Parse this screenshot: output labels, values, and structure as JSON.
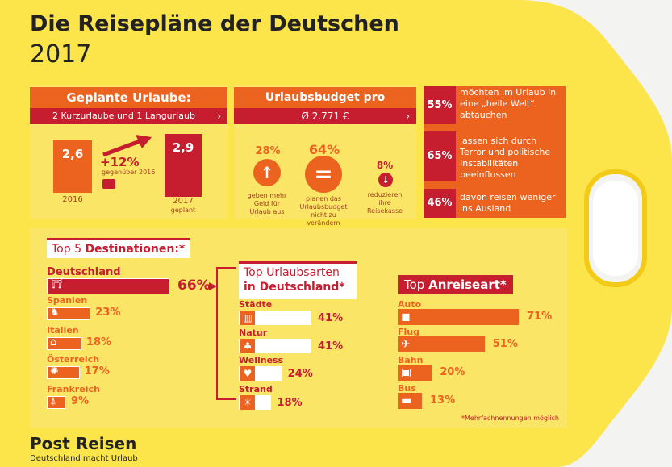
{
  "header": {
    "title": "Die Reisepläne der Deutschen",
    "year": "2017"
  },
  "urlaube": {
    "title": "Geplante Urlaube:",
    "subtitle": "2 Kurzurlaube und 1 Langurlaub",
    "v2016": "2,6",
    "l2016": "2016",
    "v2017": "2,9",
    "l2017": "2017",
    "l2017b": "geplant",
    "growth": "+12%",
    "growth_sub": "gegenüber 2016"
  },
  "budget": {
    "title": "Urlaubsbudget pro Haushalt:",
    "value": "Ø 2.771 €",
    "items": [
      {
        "pct": "28%",
        "text": "geben mehr Geld für Urlaub aus"
      },
      {
        "pct": "64%",
        "text": "planen das Urlaubsbudget nicht zu verändern"
      },
      {
        "pct": "8%",
        "text": "reduzieren ihre Reisekasse"
      }
    ]
  },
  "heile": [
    {
      "pct": "55%",
      "text": "möchten im Urlaub in eine „heile Welt“ abtauchen"
    },
    {
      "pct": "65%",
      "text": "lassen sich durch Terror und politische Instabilitäten beeinflussen"
    },
    {
      "pct": "46%",
      "text": "davon reisen weniger ins Ausland"
    }
  ],
  "destinations": {
    "title_a": "Top 5 ",
    "title_b": "Destinationen:*",
    "items": [
      {
        "name": "Deutschland",
        "pct": "66%",
        "icon": "brandenburg-gate-icon"
      },
      {
        "name": "Spanien",
        "pct": "23%",
        "icon": "bull-icon"
      },
      {
        "name": "Italien",
        "pct": "18%",
        "icon": "colosseum-icon"
      },
      {
        "name": "Österreich",
        "pct": "17%",
        "icon": "ferris-wheel-icon"
      },
      {
        "name": "Frankreich",
        "pct": "9%",
        "icon": "eiffel-tower-icon"
      }
    ]
  },
  "urlaubsarten": {
    "title_a": "Top Urlaubsarten",
    "title_b": "in Deutschland*",
    "items": [
      {
        "name": "Städte",
        "pct": "41%",
        "icon": "city-icon"
      },
      {
        "name": "Natur",
        "pct": "41%",
        "icon": "tree-icon"
      },
      {
        "name": "Wellness",
        "pct": "24%",
        "icon": "heart-icon"
      },
      {
        "name": "Strand",
        "pct": "18%",
        "icon": "sun-icon"
      }
    ]
  },
  "anreise": {
    "title_a": "Top ",
    "title_b": "Anreiseart*",
    "items": [
      {
        "name": "Auto",
        "pct": "71%",
        "icon": "car-icon"
      },
      {
        "name": "Flug",
        "pct": "51%",
        "icon": "plane-icon"
      },
      {
        "name": "Bahn",
        "pct": "20%",
        "icon": "train-icon"
      },
      {
        "name": "Bus",
        "pct": "13%",
        "icon": "bus-icon"
      }
    ]
  },
  "footnote": "*Mehrfachnennungen möglich",
  "footer": {
    "brand": "Post Reisen",
    "slogan": "Deutschland macht Urlaub"
  },
  "colors": {
    "yellow": "#f9e04a",
    "red": "#c61d2f",
    "orange": "#ec6320"
  },
  "chart_data": [
    {
      "type": "bar",
      "categories": [
        "2016",
        "2017"
      ],
      "values": [
        2.6,
        2.9
      ],
      "title": "Geplante Urlaube:"
    },
    {
      "type": "bar",
      "title": "Top 5 Destinationen:*",
      "categories": [
        "Deutschland",
        "Spanien",
        "Italien",
        "Österreich",
        "Frankreich"
      ],
      "values": [
        66,
        23,
        18,
        17,
        9
      ]
    },
    {
      "type": "bar",
      "title": "Top Urlaubsarten in Deutschland*",
      "categories": [
        "Städte",
        "Natur",
        "Wellness",
        "Strand"
      ],
      "values": [
        41,
        41,
        24,
        18
      ]
    },
    {
      "type": "bar",
      "title": "Top Anreiseart*",
      "categories": [
        "Auto",
        "Flug",
        "Bahn",
        "Bus"
      ],
      "values": [
        71,
        51,
        20,
        13
      ]
    }
  ]
}
